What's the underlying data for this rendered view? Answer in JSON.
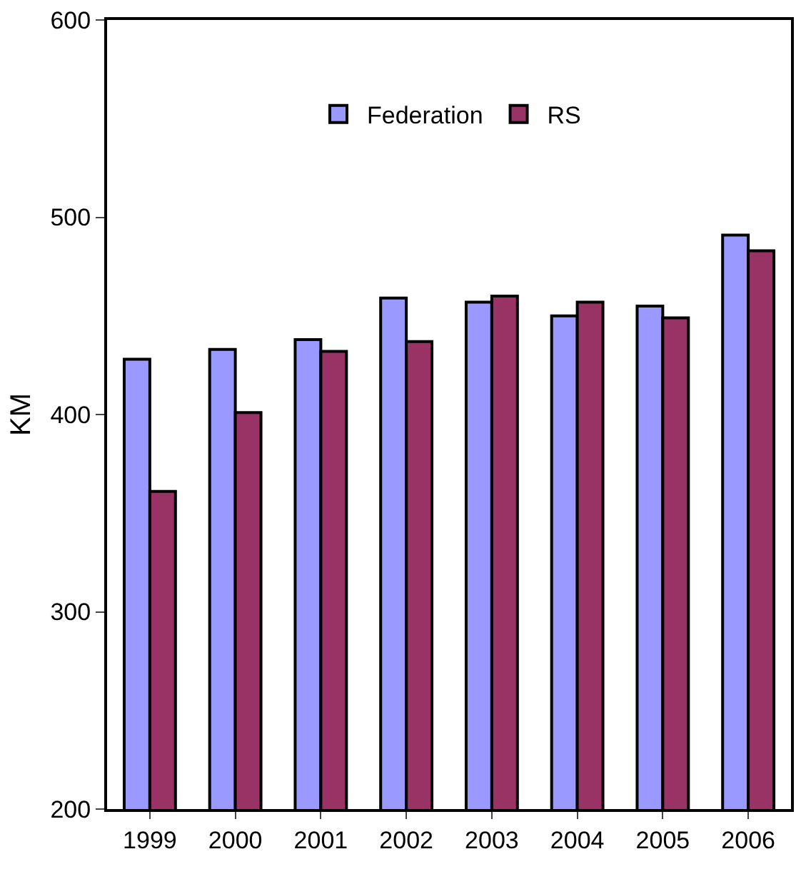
{
  "chart_data": {
    "type": "bar",
    "ylabel": "KM",
    "categories": [
      "1999",
      "2000",
      "2001",
      "2002",
      "2003",
      "2004",
      "2005",
      "2006"
    ],
    "series": [
      {
        "name": "Federation",
        "color": "#9999ff",
        "values": [
          428,
          433,
          438,
          459,
          457,
          450,
          455,
          491
        ]
      },
      {
        "name": "RS",
        "color": "#993366",
        "values": [
          361,
          401,
          432,
          437,
          460,
          457,
          449,
          483
        ]
      }
    ],
    "ylim": [
      200,
      600
    ],
    "yticks": [
      200,
      300,
      400,
      500,
      600
    ],
    "grid": false,
    "legend": "top"
  }
}
